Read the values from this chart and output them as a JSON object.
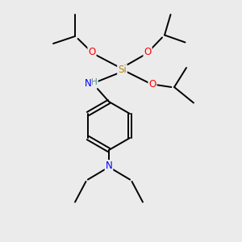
{
  "bg_color": "#ebebeb",
  "atom_colors": {
    "C": "#000000",
    "H": "#4a8a8a",
    "N": "#0000ff",
    "O": "#ff0000",
    "Si": "#b8860b"
  },
  "bond_color": "#000000",
  "bond_width": 1.4,
  "figsize": [
    3.0,
    3.0
  ],
  "dpi": 100
}
